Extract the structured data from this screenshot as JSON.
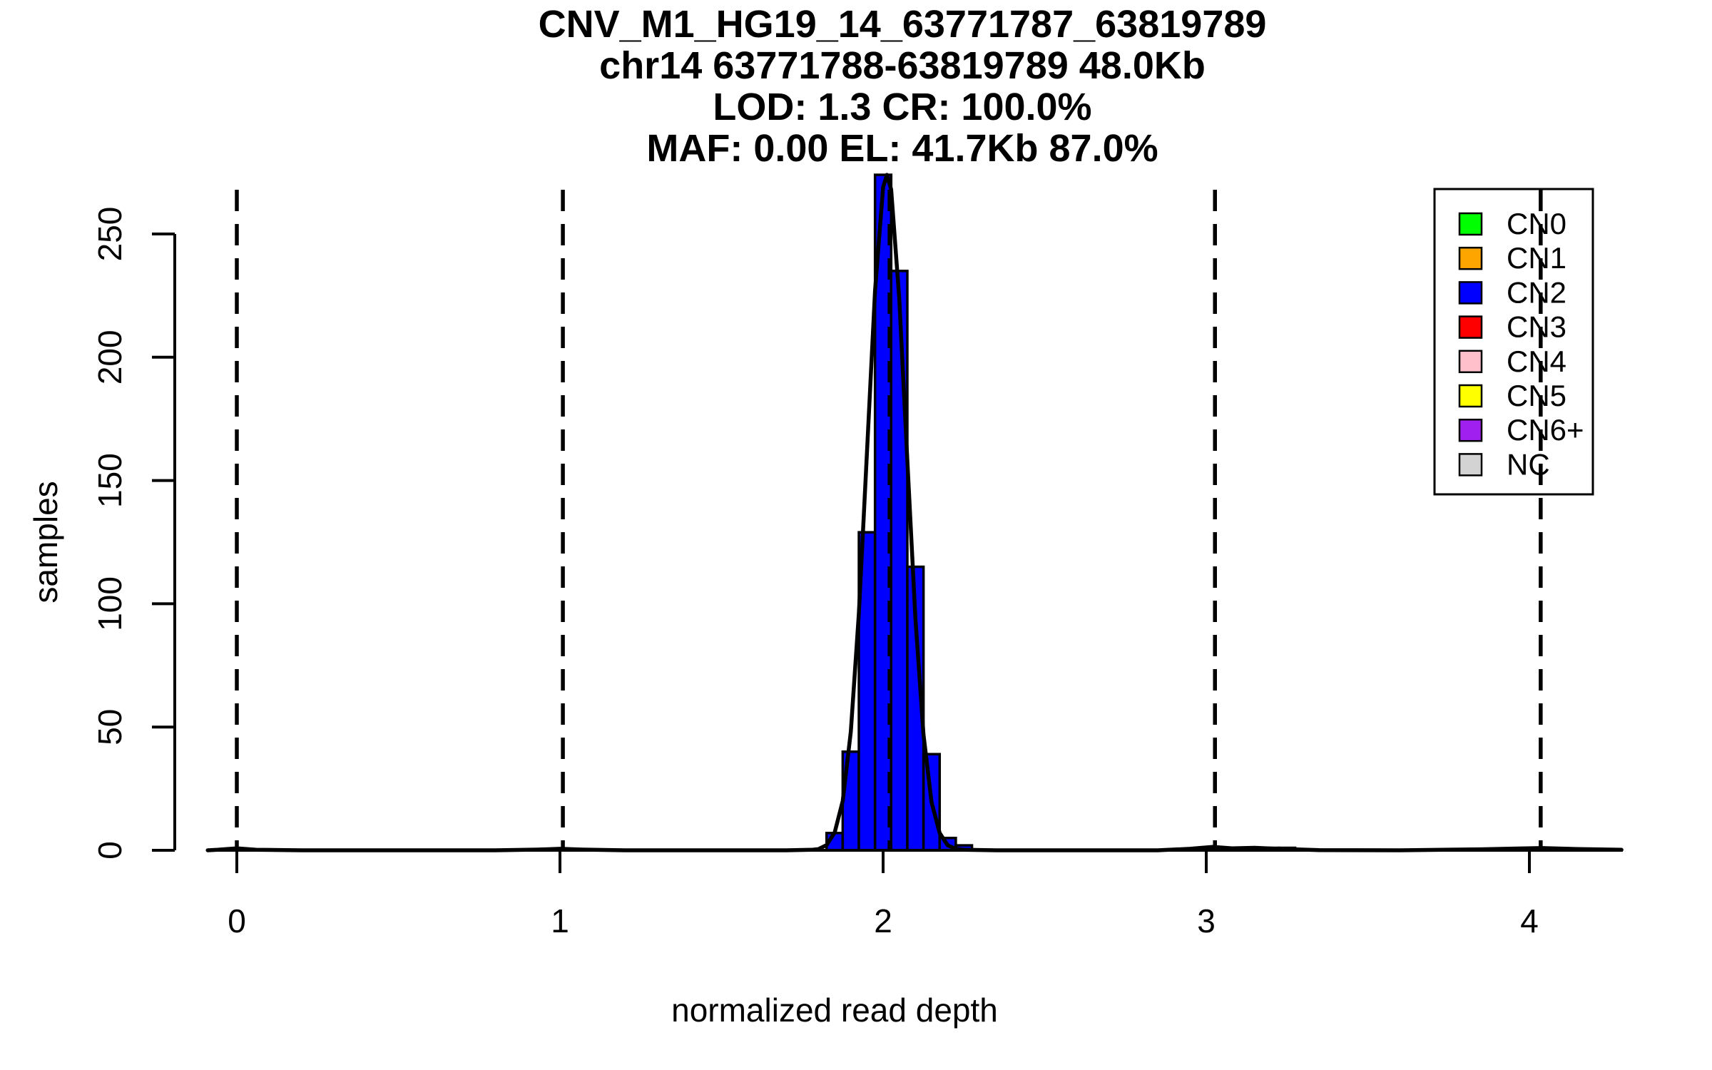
{
  "title": {
    "lines": [
      "CNV_M1_HG19_14_63771787_63819789",
      "chr14 63771788-63819789 48.0Kb",
      "LOD: 1.3 CR: 100.0%",
      "MAF: 0.00 EL: 41.7Kb 87.0%"
    ]
  },
  "chart_data": {
    "type": "bar",
    "subtype": "histogram-with-density-curve",
    "title": "CNV_M1_HG19_14_63771787_63819789 chr14 63771788-63819789 48.0Kb LOD: 1.3 CR: 100.0% MAF: 0.00 EL: 41.7Kb 87.0%",
    "xlabel": "normalized read depth",
    "ylabel": "samples",
    "x_ticks": [
      0,
      1,
      2,
      3,
      4
    ],
    "y_ticks": [
      0,
      50,
      100,
      150,
      200,
      250
    ],
    "xlim": [
      -0.19,
      4.43
    ],
    "ylim": [
      0,
      277
    ],
    "grid": false,
    "bin_width": 0.05,
    "bar_color": "#0000FF",
    "bar_edge_color": "#000000",
    "bars": [
      {
        "x": 1.825,
        "count": 7
      },
      {
        "x": 1.875,
        "count": 40
      },
      {
        "x": 1.925,
        "count": 129
      },
      {
        "x": 1.975,
        "count": 274
      },
      {
        "x": 2.025,
        "count": 235
      },
      {
        "x": 2.075,
        "count": 115
      },
      {
        "x": 2.125,
        "count": 39
      },
      {
        "x": 2.175,
        "count": 5
      },
      {
        "x": 2.225,
        "count": 2
      },
      {
        "x": 3.125,
        "count": 1
      },
      {
        "x": 3.175,
        "count": 1
      },
      {
        "x": 3.225,
        "count": 1
      }
    ],
    "density_curve_color": "#000000",
    "density_curve_points": [
      [
        -0.09,
        0
      ],
      [
        -0.06,
        0.2
      ],
      [
        0,
        0.8
      ],
      [
        0.06,
        0.2
      ],
      [
        0.2,
        0
      ],
      [
        0.8,
        0
      ],
      [
        0.93,
        0.3
      ],
      [
        1.0,
        0.6
      ],
      [
        1.07,
        0.3
      ],
      [
        1.2,
        0
      ],
      [
        1.7,
        0
      ],
      [
        1.78,
        0.2
      ],
      [
        1.8,
        0.5
      ],
      [
        1.825,
        2.1
      ],
      [
        1.85,
        7.2
      ],
      [
        1.875,
        20
      ],
      [
        1.9,
        48
      ],
      [
        1.925,
        96
      ],
      [
        1.95,
        161
      ],
      [
        1.975,
        227
      ],
      [
        2.0,
        269
      ],
      [
        2.012,
        274
      ],
      [
        2.025,
        268
      ],
      [
        2.05,
        224
      ],
      [
        2.075,
        158
      ],
      [
        2.1,
        94
      ],
      [
        2.125,
        47
      ],
      [
        2.15,
        19.5
      ],
      [
        2.175,
        7
      ],
      [
        2.2,
        2
      ],
      [
        2.225,
        0.6
      ],
      [
        2.25,
        0.2
      ],
      [
        2.35,
        0
      ],
      [
        2.85,
        0
      ],
      [
        2.95,
        0.6
      ],
      [
        3.02,
        1.4
      ],
      [
        3.08,
        0.8
      ],
      [
        3.15,
        1.0
      ],
      [
        3.22,
        0.6
      ],
      [
        3.35,
        0.1
      ],
      [
        3.6,
        0
      ],
      [
        3.85,
        0.4
      ],
      [
        3.95,
        0.7
      ],
      [
        4.04,
        0.9
      ],
      [
        4.15,
        0.5
      ],
      [
        4.285,
        0.2
      ]
    ],
    "dashed_guide_lines_x": [
      0,
      1.009,
      2.02,
      3.027,
      4.035
    ],
    "dashed_line_color": "#000000",
    "legend_position": "top-right",
    "legend": {
      "items": [
        {
          "label": "CN0",
          "color": "#00FF00"
        },
        {
          "label": "CN1",
          "color": "#FFA500"
        },
        {
          "label": "CN2",
          "color": "#0000FF"
        },
        {
          "label": "CN3",
          "color": "#FF0000"
        },
        {
          "label": "CN4",
          "color": "#FFC0CB"
        },
        {
          "label": "CN5",
          "color": "#FFFF00"
        },
        {
          "label": "CN6+",
          "color": "#A020F0"
        },
        {
          "label": "NC",
          "color": "#D3D3D3"
        }
      ]
    }
  }
}
